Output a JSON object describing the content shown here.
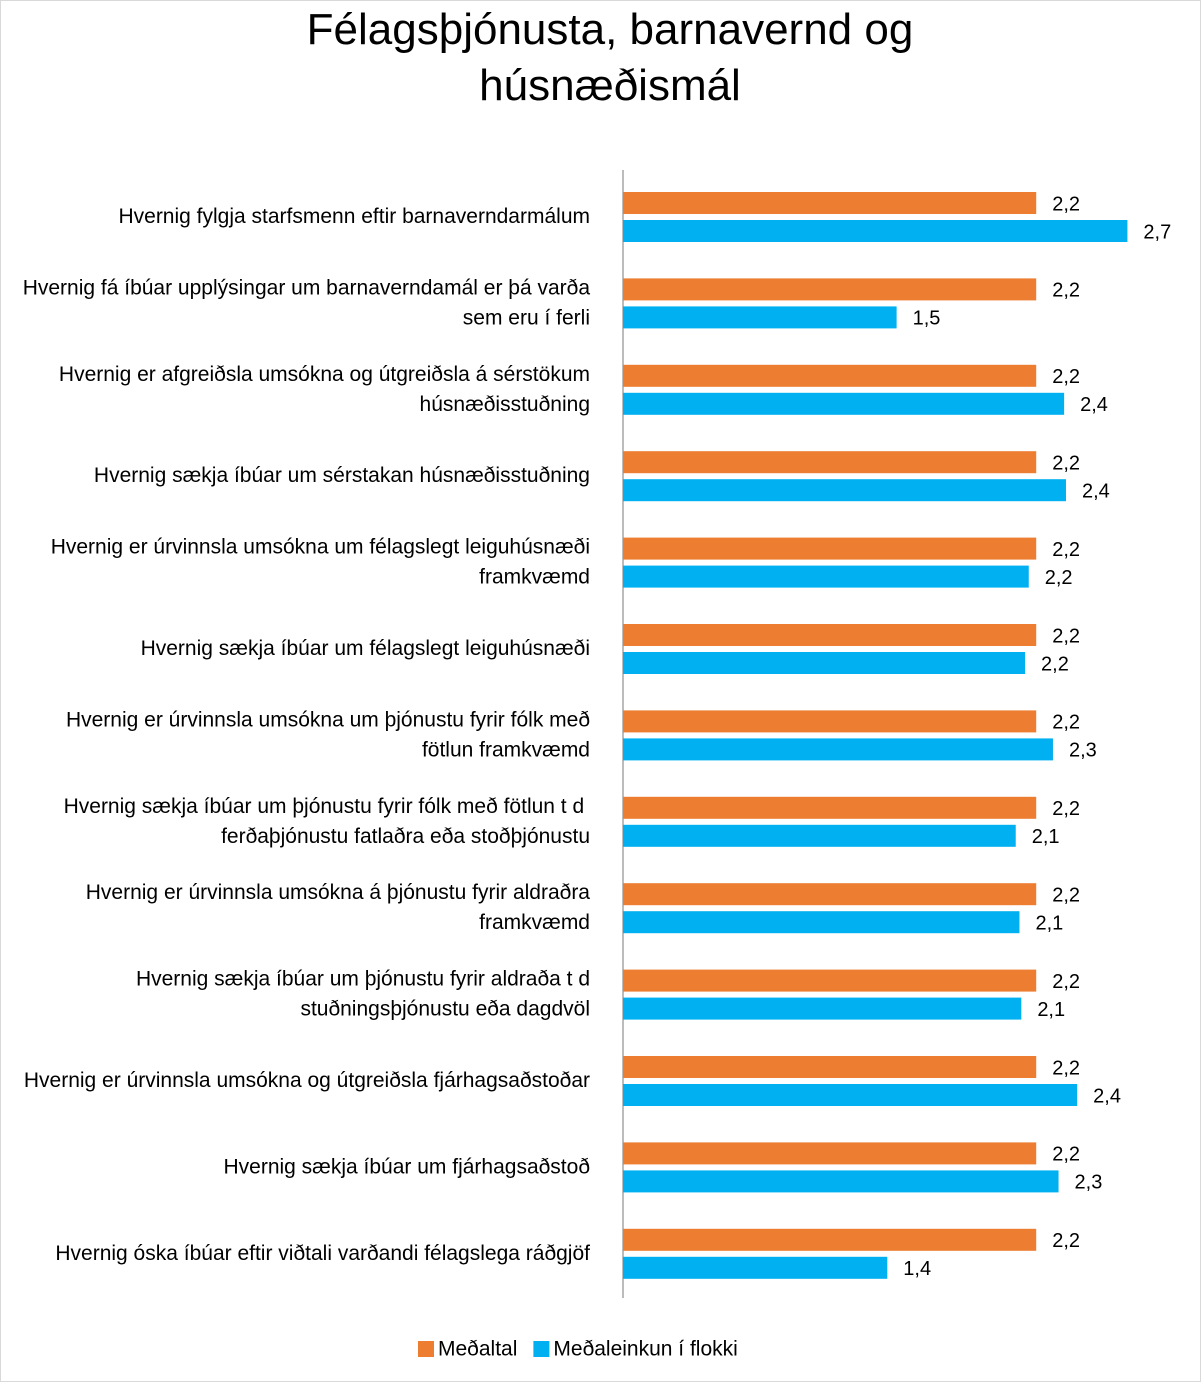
{
  "chart_data": {
    "type": "hbar",
    "title": "Félagsþjónusta, barnavernd og húsnæðismál",
    "categories": [
      "Hvernig fylgja starfsmenn eftir barnaverndarmálum",
      "Hvernig fá íbúar upplýsingar um barnaverndamál er þá varða sem eru í ferli",
      "Hvernig er afgreiðsla umsókna og útgreiðsla á sérstökum húsnæðisstuðning",
      "Hvernig sækja íbúar um sérstakan húsnæðisstuðning",
      "Hvernig er úrvinnsla umsókna um félagslegt leiguhúsnæði framkvæmd",
      "Hvernig sækja íbúar um félagslegt leiguhúsnæði",
      "Hvernig er úrvinnsla umsókna um þjónustu fyrir fólk með fötlun framkvæmd",
      "Hvernig sækja íbúar um þjónustu fyrir fólk með fötlun  t d  ferðaþjónustu fatlaðra eða stoðþjónustu",
      "Hvernig er úrvinnsla umsókna á þjónustu fyrir aldraðra framkvæmd",
      "Hvernig sækja íbúar um þjónustu fyrir aldraða  t d stuðningsþjónustu eða dagdvöl",
      "Hvernig er úrvinnsla umsókna og útgreiðsla fjárhagsaðstoðar",
      "Hvernig sækja íbúar um fjárhagsaðstoð",
      "Hvernig óska íbúar eftir viðtali varðandi félagslega ráðgjöf"
    ],
    "series": [
      {
        "name": "Meðaltal",
        "color": "#ed7d31",
        "values": [
          2.22,
          2.22,
          2.22,
          2.22,
          2.22,
          2.22,
          2.22,
          2.22,
          2.22,
          2.22,
          2.22,
          2.22,
          2.22
        ],
        "value_labels": [
          "2,2",
          "2,2",
          "2,2",
          "2,2",
          "2,2",
          "2,2",
          "2,2",
          "2,2",
          "2,2",
          "2,2",
          "2,2",
          "2,2",
          "2,2"
        ]
      },
      {
        "name": "Meðaleinkun í flokki",
        "color": "#00b0f0",
        "values": [
          2.71,
          1.47,
          2.37,
          2.38,
          2.18,
          2.16,
          2.31,
          2.11,
          2.13,
          2.14,
          2.44,
          2.34,
          1.42
        ],
        "value_labels": [
          "2,7",
          "1,5",
          "2,4",
          "2,4",
          "2,2",
          "2,2",
          "2,3",
          "2,1",
          "2,1",
          "2,1",
          "2,4",
          "2,3",
          "1,4"
        ]
      }
    ],
    "xlim": [
      0,
      3.1
    ]
  }
}
